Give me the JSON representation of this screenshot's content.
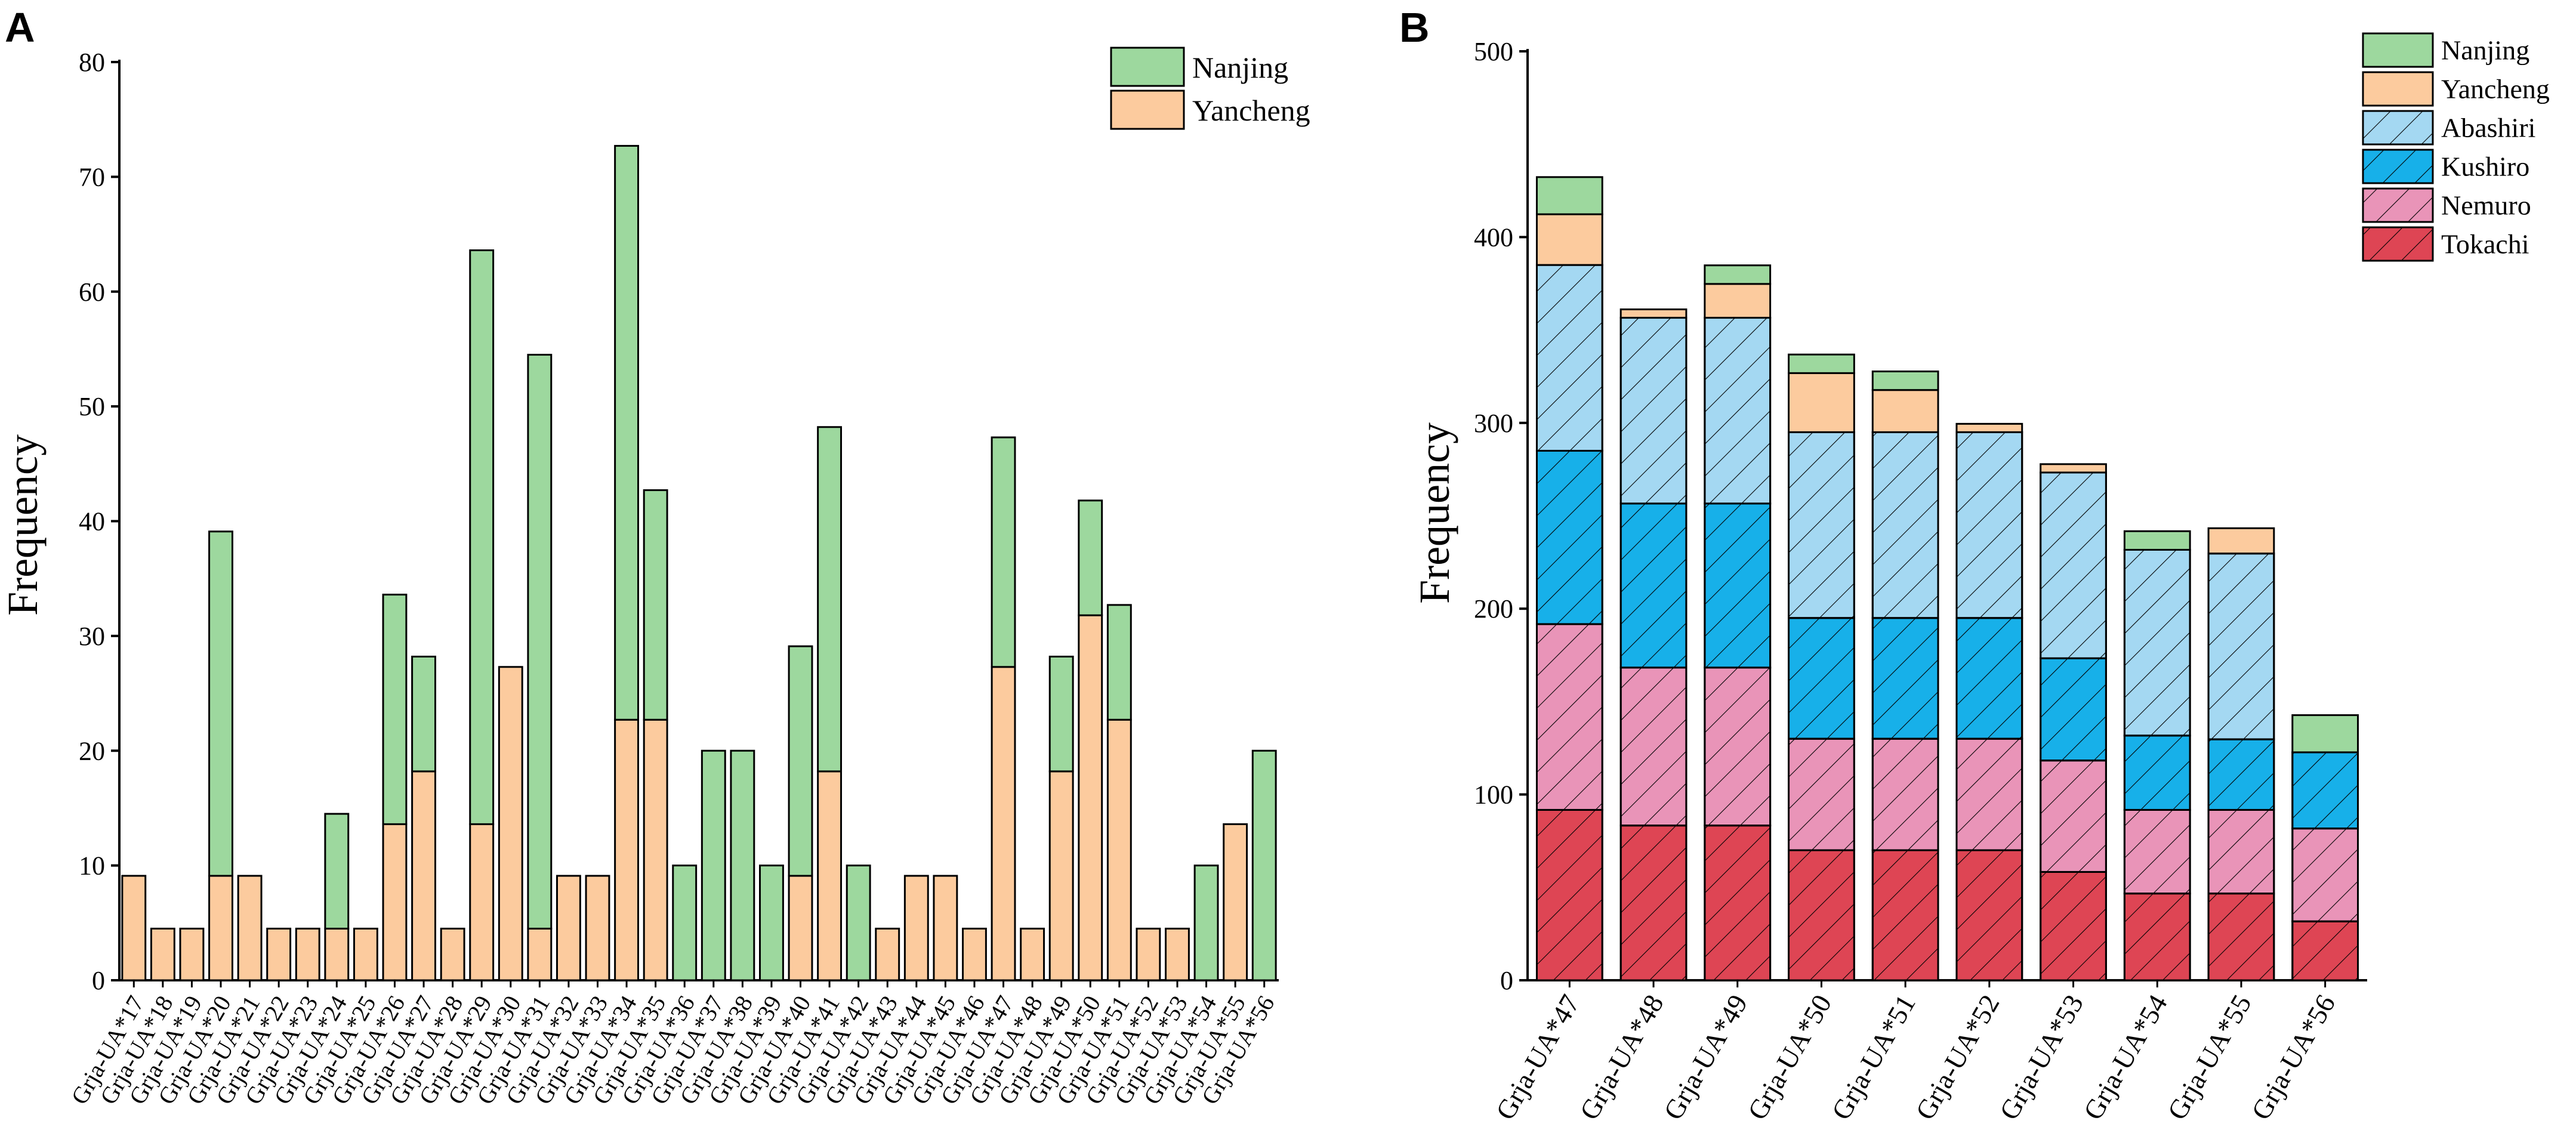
{
  "colors": {
    "Nanjing": "#9DD89E",
    "Yancheng": "#FCCB9E",
    "Abashiri": "#A4D8F2",
    "Kushiro": "#17B0E9",
    "Nemuro": "#E994B8",
    "Tokachi": "#DE4554"
  },
  "chart_data": [
    {
      "panel": "A",
      "type": "bar",
      "stacked": true,
      "ylabel": "Frequency",
      "xlabel": "",
      "ylim": [
        0,
        80
      ],
      "yticks": [
        "0",
        "10",
        "20",
        "30",
        "40",
        "50",
        "60",
        "70",
        "80"
      ],
      "legend": [
        "Nanjing",
        "Yancheng"
      ],
      "legend_position": "top-right",
      "categories": [
        "Grja-UA*17",
        "Grja-UA*18",
        "Grja-UA*19",
        "Grja-UA*20",
        "Grja-UA*21",
        "Grja-UA*22",
        "Grja-UA*23",
        "Grja-UA*24",
        "Grja-UA*25",
        "Grja-UA*26",
        "Grja-UA*27",
        "Grja-UA*28",
        "Grja-UA*29",
        "Grja-UA*30",
        "Grja-UA*31",
        "Grja-UA*32",
        "Grja-UA*33",
        "Grja-UA*34",
        "Grja-UA*35",
        "Grja-UA*36",
        "Grja-UA*37",
        "Grja-UA*38",
        "Grja-UA*39",
        "Grja-UA*40",
        "Grja-UA*41",
        "Grja-UA*42",
        "Grja-UA*43",
        "Grja-UA*44",
        "Grja-UA*45",
        "Grja-UA*46",
        "Grja-UA*47",
        "Grja-UA*48",
        "Grja-UA*49",
        "Grja-UA*50",
        "Grja-UA*51",
        "Grja-UA*52",
        "Grja-UA*53",
        "Grja-UA*54",
        "Grja-UA*55",
        "Grja-UA*56"
      ],
      "series": [
        {
          "name": "Yancheng",
          "values": [
            9.1,
            4.5,
            4.5,
            9.1,
            9.1,
            4.5,
            4.5,
            4.5,
            4.5,
            13.6,
            18.2,
            4.5,
            13.6,
            27.3,
            4.5,
            9.1,
            9.1,
            22.7,
            22.7,
            0,
            0,
            0,
            0,
            9.1,
            18.2,
            0,
            4.5,
            9.1,
            9.1,
            4.5,
            27.3,
            4.5,
            18.2,
            31.8,
            22.7,
            4.5,
            4.5,
            0,
            13.6,
            0
          ]
        },
        {
          "name": "Nanjing",
          "values": [
            0,
            0,
            0,
            30,
            0,
            0,
            0,
            10,
            0,
            20,
            10,
            0,
            50,
            0,
            50,
            0,
            0,
            50,
            20,
            10,
            20,
            20,
            10,
            20,
            30,
            10,
            0,
            0,
            0,
            0,
            20,
            0,
            10,
            10,
            10,
            0,
            0,
            10,
            0,
            20
          ]
        }
      ]
    },
    {
      "panel": "B",
      "type": "bar",
      "stacked": true,
      "ylabel": "Frequency",
      "xlabel": "",
      "ylim": [
        0,
        500
      ],
      "yticks": [
        "0",
        "100",
        "200",
        "300",
        "400",
        "500"
      ],
      "legend": [
        "Nanjing",
        "Yancheng",
        "Abashiri",
        "Kushiro",
        "Nemuro",
        "Tokachi"
      ],
      "legend_position": "top-right",
      "categories": [
        "Grja-UA*47",
        "Grja-UA*48",
        "Grja-UA*49",
        "Grja-UA*50",
        "Grja-UA*51",
        "Grja-UA*52",
        "Grja-UA*53",
        "Grja-UA*54",
        "Grja-UA*55",
        "Grja-UA*56"
      ],
      "series": [
        {
          "name": "Tokachi",
          "hatched": true,
          "values": [
            91.7,
            83.3,
            83.3,
            70,
            70,
            70,
            58.3,
            46.7,
            46.7,
            31.7
          ]
        },
        {
          "name": "Nemuro",
          "hatched": true,
          "values": [
            100,
            85,
            85,
            60,
            60,
            60,
            60,
            45,
            45,
            50
          ]
        },
        {
          "name": "Kushiro",
          "hatched": true,
          "values": [
            93.3,
            88.3,
            88.3,
            65,
            65,
            65,
            55,
            40,
            38,
            41
          ]
        },
        {
          "name": "Abashiri",
          "hatched": true,
          "values": [
            100,
            100,
            100,
            100,
            100,
            100,
            100,
            100,
            100,
            0
          ]
        },
        {
          "name": "Yancheng",
          "hatched": false,
          "values": [
            27.3,
            4.5,
            18.2,
            31.8,
            22.7,
            4.5,
            4.5,
            0,
            13.6,
            0
          ]
        },
        {
          "name": "Nanjing",
          "hatched": false,
          "values": [
            20,
            0,
            10,
            10,
            10,
            0,
            0,
            10,
            0,
            20
          ]
        }
      ]
    }
  ]
}
